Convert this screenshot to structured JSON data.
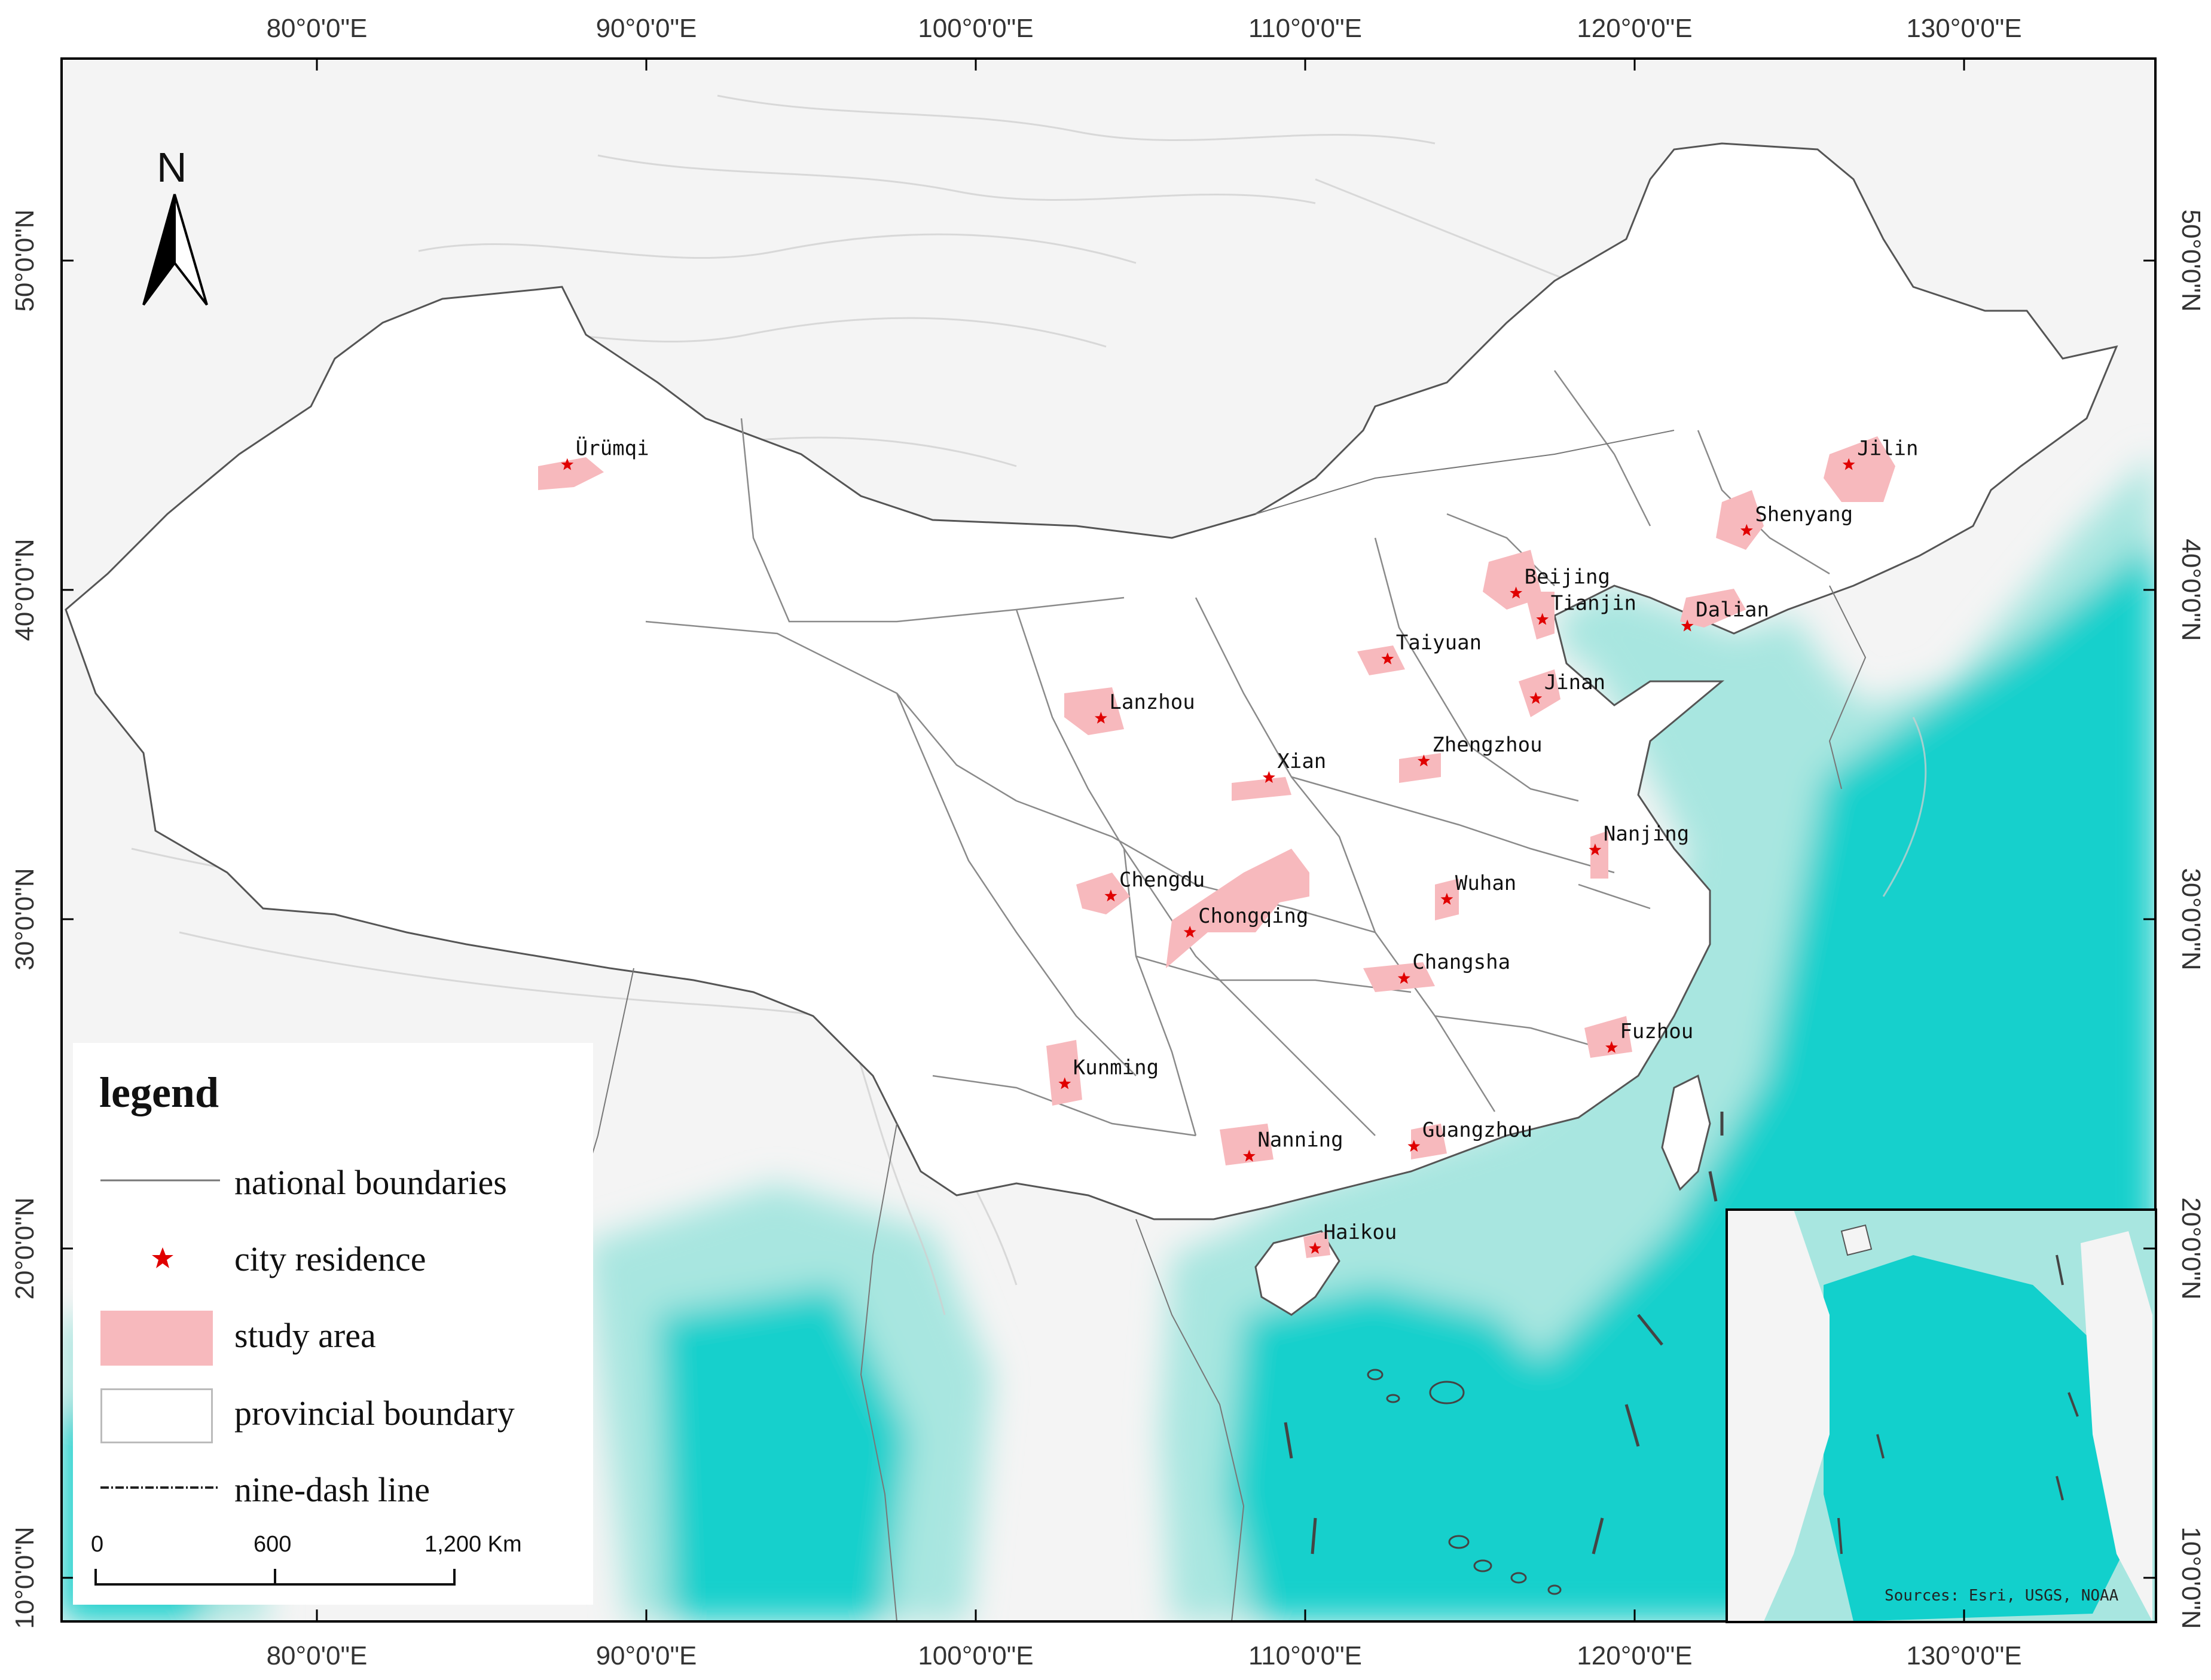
{
  "top_lon_labels": [
    "80°0'0\"E",
    "90°0'0\"E",
    "100°0'0\"E",
    "110°0'0\"E",
    "120°0'0\"E",
    "130°0'0\"E"
  ],
  "bottom_lon_labels": [
    "80°0'0\"E",
    "90°0'0\"E",
    "100°0'0\"E",
    "110°0'0\"E",
    "120°0'0\"E",
    "130°0'0\"E"
  ],
  "left_lat_labels": [
    "50°0'0\"N",
    "40°0'0\"N",
    "30°0'0\"N",
    "20°0'0\"N",
    "10°0'0\"N"
  ],
  "right_lat_labels": [
    "50°0'0\"N",
    "40°0'0\"N",
    "30°0'0\"N",
    "20°0'0\"N",
    "10°0'0\"N"
  ],
  "north_arrow": {
    "letter": "N",
    "icon": "north-arrow-icon"
  },
  "colors": {
    "land": "#f4f4f4",
    "relief": "#cfcfcf",
    "sea_shallow": "#a8e6e0",
    "sea_deep": "#12d0cc",
    "study_area": "#f7b9bd",
    "city_star": "#e00000",
    "boundary": "#666666"
  },
  "cities": [
    {
      "name": "Ürümqi",
      "lon": 87.6,
      "lat": 43.8
    },
    {
      "name": "Jilin",
      "lon": 126.5,
      "lat": 43.8
    },
    {
      "name": "Shenyang",
      "lon": 123.4,
      "lat": 41.8
    },
    {
      "name": "Beijing",
      "lon": 116.4,
      "lat": 39.9
    },
    {
      "name": "Tianjin",
      "lon": 117.2,
      "lat": 39.1
    },
    {
      "name": "Dalian",
      "lon": 121.6,
      "lat": 38.9
    },
    {
      "name": "Taiyuan",
      "lon": 112.5,
      "lat": 37.9
    },
    {
      "name": "Jinan",
      "lon": 117.0,
      "lat": 36.7
    },
    {
      "name": "Lanzhou",
      "lon": 103.8,
      "lat": 36.1
    },
    {
      "name": "Xian",
      "lon": 108.9,
      "lat": 34.3
    },
    {
      "name": "Zhengzhou",
      "lon": 113.6,
      "lat": 34.8
    },
    {
      "name": "Nanjing",
      "lon": 118.8,
      "lat": 32.1
    },
    {
      "name": "Chengdu",
      "lon": 104.1,
      "lat": 30.7
    },
    {
      "name": "Chongqing",
      "lon": 106.5,
      "lat": 29.6
    },
    {
      "name": "Wuhan",
      "lon": 114.3,
      "lat": 30.6
    },
    {
      "name": "Changsha",
      "lon": 113.0,
      "lat": 28.2
    },
    {
      "name": "Fuzhou",
      "lon": 119.3,
      "lat": 26.1
    },
    {
      "name": "Kunming",
      "lon": 102.7,
      "lat": 25.0
    },
    {
      "name": "Nanning",
      "lon": 108.3,
      "lat": 22.8
    },
    {
      "name": "Guangzhou",
      "lon": 113.3,
      "lat": 23.1
    },
    {
      "name": "Haikou",
      "lon": 110.3,
      "lat": 20.0
    }
  ],
  "legend": {
    "title": "legend",
    "items": [
      {
        "label": "national boundaries",
        "symbol": "thin-line"
      },
      {
        "label": "city residence",
        "symbol": "red-star"
      },
      {
        "label": "study area",
        "symbol": "pink-fill"
      },
      {
        "label": "provincial boundary",
        "symbol": "white-box"
      },
      {
        "label": "nine-dash line",
        "symbol": "dash-line"
      }
    ]
  },
  "scale_bar": {
    "labels": [
      "0",
      "600",
      "1,200 Km"
    ]
  },
  "sources": "Sources: Esri, USGS, NOAA"
}
